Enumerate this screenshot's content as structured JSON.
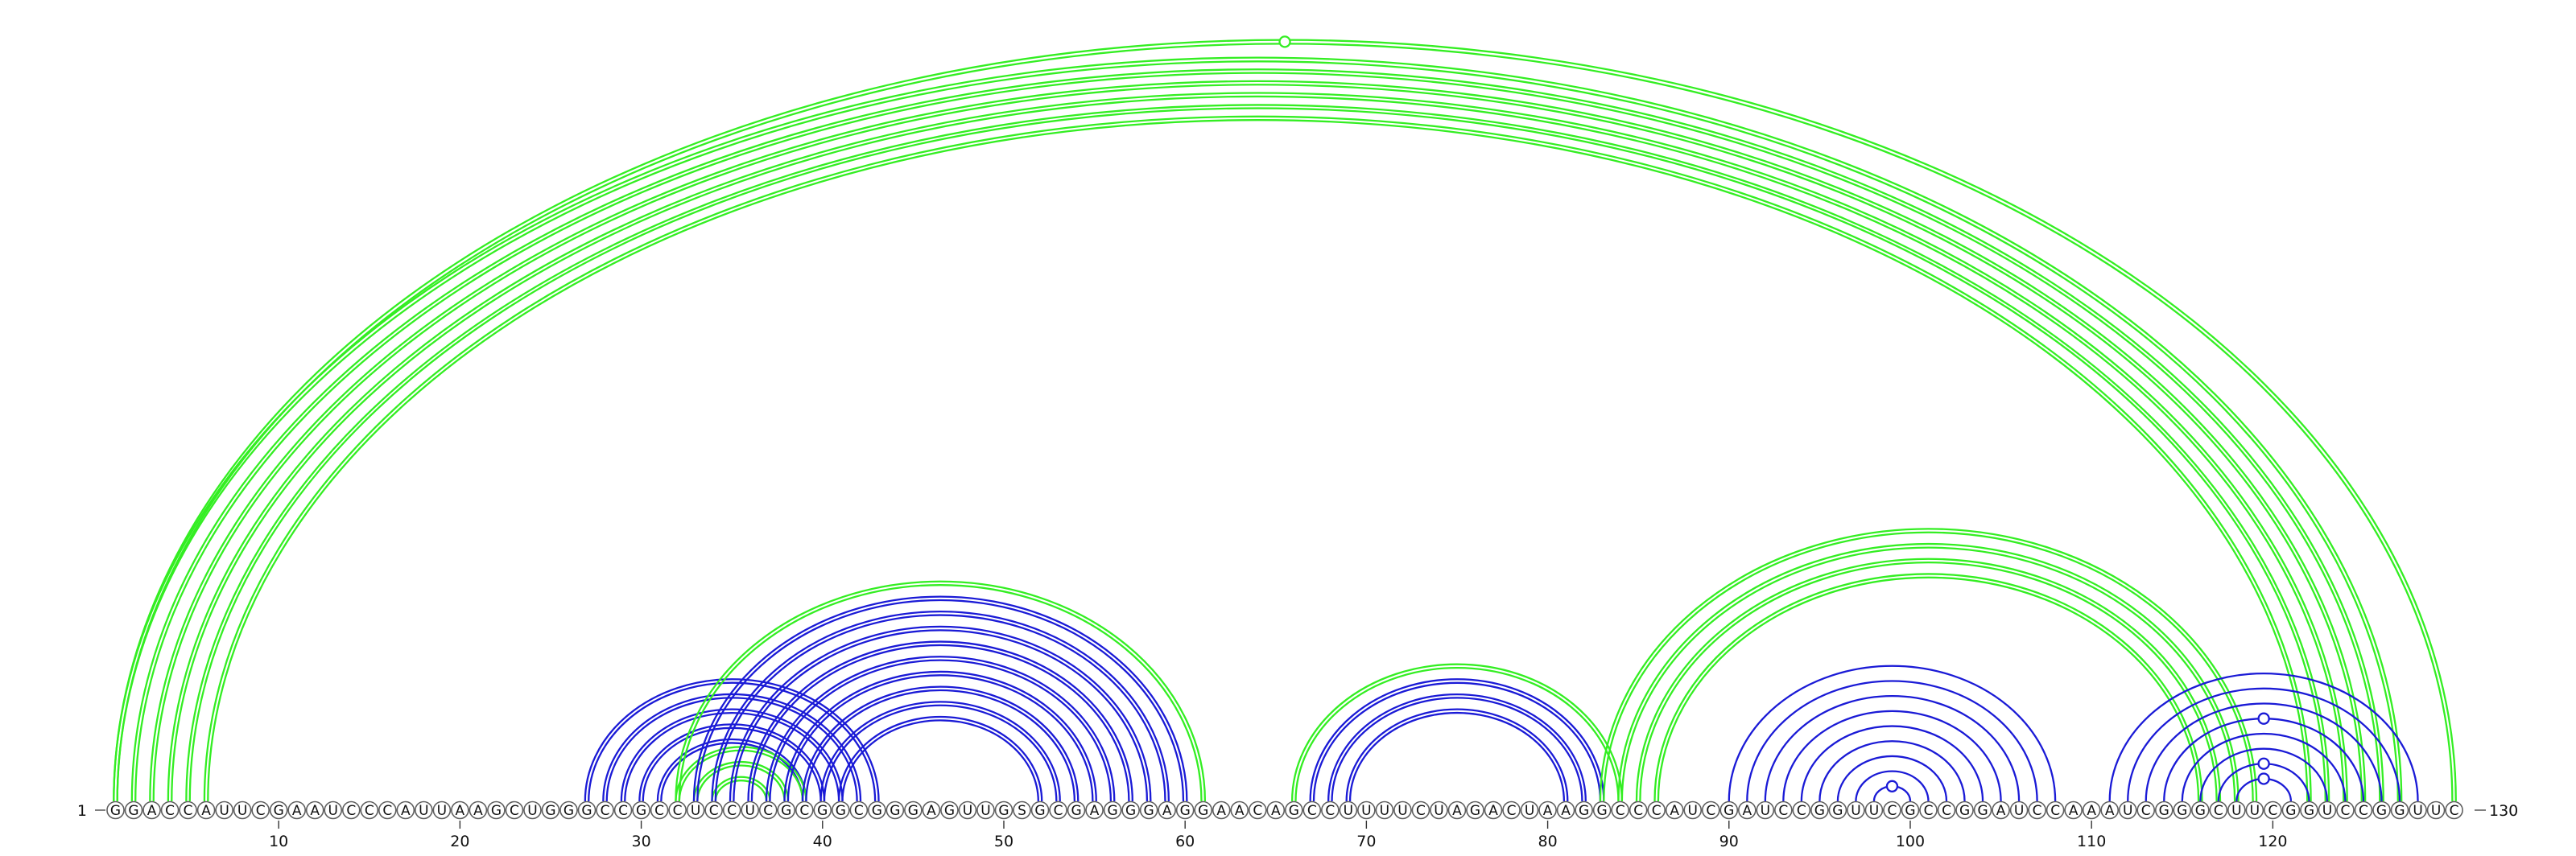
{
  "sequence": "GGACCAUUCGAAUCCCAUUAAGCUGGGCCGCCUCCUCGCGGCGGGAGUUGSGCGAGGGAGGAACAGCCUUUUCUAGACUAAGGCCCAUCGAUCCGGUUCGCCGGAUCCAAAUCGGGCUUCGGUCCGGUUC",
  "start_label": "1",
  "end_label": "130",
  "tick_labels": [
    {
      "index": 10,
      "label": "10"
    },
    {
      "index": 20,
      "label": "20"
    },
    {
      "index": 30,
      "label": "30"
    },
    {
      "index": 40,
      "label": "40"
    },
    {
      "index": 50,
      "label": "50"
    },
    {
      "index": 60,
      "label": "60"
    },
    {
      "index": 70,
      "label": "70"
    },
    {
      "index": 80,
      "label": "80"
    },
    {
      "index": 90,
      "label": "90"
    },
    {
      "index": 100,
      "label": "100"
    },
    {
      "index": 110,
      "label": "110"
    },
    {
      "index": 120,
      "label": "120"
    }
  ],
  "colors": {
    "green": "#33ee22",
    "blue": "#1a1ad6"
  },
  "arcs": [
    {
      "i": 1,
      "j": 127,
      "color": "green",
      "double": true
    },
    {
      "i": 2,
      "j": 126,
      "color": "green",
      "double": true
    },
    {
      "i": 3,
      "j": 125,
      "color": "green",
      "double": true
    },
    {
      "i": 4,
      "j": 124,
      "color": "green",
      "double": true
    },
    {
      "i": 5,
      "j": 123,
      "color": "green",
      "double": true
    },
    {
      "i": 6,
      "j": 122,
      "color": "green",
      "double": true
    },
    {
      "i": 1,
      "j": 130,
      "color": "green",
      "double": true,
      "marker": true
    },
    {
      "i": 27,
      "j": 43,
      "color": "blue",
      "double": true
    },
    {
      "i": 28,
      "j": 42,
      "color": "blue",
      "double": true
    },
    {
      "i": 29,
      "j": 41,
      "color": "blue",
      "double": true
    },
    {
      "i": 30,
      "j": 40,
      "color": "blue",
      "double": true
    },
    {
      "i": 31,
      "j": 39,
      "color": "blue",
      "double": true
    },
    {
      "i": 32,
      "j": 39,
      "color": "green",
      "double": true
    },
    {
      "i": 33,
      "j": 38,
      "color": "green",
      "double": true
    },
    {
      "i": 34,
      "j": 37,
      "color": "green",
      "double": true
    },
    {
      "i": 32,
      "j": 61,
      "color": "green",
      "double": true
    },
    {
      "i": 33,
      "j": 60,
      "color": "blue",
      "double": true
    },
    {
      "i": 34,
      "j": 59,
      "color": "blue",
      "double": true
    },
    {
      "i": 35,
      "j": 58,
      "color": "blue",
      "double": true
    },
    {
      "i": 36,
      "j": 57,
      "color": "blue",
      "double": true
    },
    {
      "i": 37,
      "j": 56,
      "color": "blue",
      "double": true
    },
    {
      "i": 38,
      "j": 55,
      "color": "blue",
      "double": true
    },
    {
      "i": 39,
      "j": 54,
      "color": "blue",
      "double": true
    },
    {
      "i": 40,
      "j": 53,
      "color": "blue",
      "double": true
    },
    {
      "i": 41,
      "j": 52,
      "color": "blue",
      "double": true
    },
    {
      "i": 66,
      "j": 84,
      "color": "green",
      "double": true
    },
    {
      "i": 67,
      "j": 83,
      "color": "blue",
      "double": true
    },
    {
      "i": 68,
      "j": 82,
      "color": "blue",
      "double": true
    },
    {
      "i": 69,
      "j": 81,
      "color": "blue",
      "double": true
    },
    {
      "i": 83,
      "j": 119,
      "color": "green",
      "double": true
    },
    {
      "i": 84,
      "j": 118,
      "color": "green",
      "double": true
    },
    {
      "i": 85,
      "j": 117,
      "color": "green",
      "double": true
    },
    {
      "i": 86,
      "j": 116,
      "color": "green",
      "double": true
    },
    {
      "i": 90,
      "j": 108,
      "color": "blue",
      "double": false
    },
    {
      "i": 91,
      "j": 107,
      "color": "blue",
      "double": false
    },
    {
      "i": 92,
      "j": 106,
      "color": "blue",
      "double": false
    },
    {
      "i": 93,
      "j": 105,
      "color": "blue",
      "double": false
    },
    {
      "i": 94,
      "j": 104,
      "color": "blue",
      "double": false
    },
    {
      "i": 95,
      "j": 103,
      "color": "blue",
      "double": false
    },
    {
      "i": 96,
      "j": 102,
      "color": "blue",
      "double": false
    },
    {
      "i": 97,
      "j": 101,
      "color": "blue",
      "double": false
    },
    {
      "i": 98,
      "j": 100,
      "color": "blue",
      "double": false,
      "marker": true
    },
    {
      "i": 111,
      "j": 128,
      "color": "blue",
      "double": false
    },
    {
      "i": 112,
      "j": 127,
      "color": "blue",
      "double": false
    },
    {
      "i": 113,
      "j": 126,
      "color": "blue",
      "double": false
    },
    {
      "i": 114,
      "j": 125,
      "color": "blue",
      "double": false,
      "marker": true
    },
    {
      "i": 115,
      "j": 124,
      "color": "blue",
      "double": false
    },
    {
      "i": 116,
      "j": 123,
      "color": "blue",
      "double": false
    },
    {
      "i": 117,
      "j": 122,
      "color": "blue",
      "double": false,
      "marker": true
    },
    {
      "i": 118,
      "j": 121,
      "color": "blue",
      "double": false,
      "marker": true
    }
  ]
}
